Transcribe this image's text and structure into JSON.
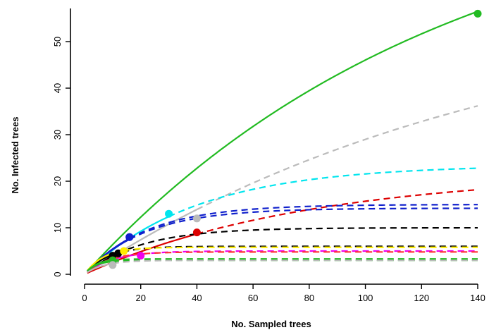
{
  "chart_data": {
    "type": "line",
    "title": "",
    "xlabel": "No. Sampled trees",
    "ylabel": "No. Infected trees",
    "xlim": [
      0,
      140
    ],
    "ylim": [
      0,
      55
    ],
    "xticks": [
      0,
      20,
      40,
      60,
      80,
      100,
      120,
      140
    ],
    "yticks": [
      0,
      10,
      20,
      30,
      40,
      50
    ],
    "grid": false,
    "legend": "none",
    "series": [
      {
        "color": "#22bb22",
        "asymptote": 85,
        "k": 0.0078,
        "n_observed": 140,
        "y_observed": 56,
        "extrapolate_to": 140
      },
      {
        "color": "#bbbbbb",
        "asymptote": 60,
        "k": 0.0066,
        "n_observed": 40,
        "y_observed": 12,
        "extrapolate_to": 140
      },
      {
        "color": "#00e5ee",
        "asymptote": 23.5,
        "k": 0.025,
        "n_observed": 30,
        "y_observed": 13,
        "extrapolate_to": 140
      },
      {
        "color": "#dd0000",
        "asymptote": 22,
        "k": 0.0125,
        "n_observed": 40,
        "y_observed": 9,
        "extrapolate_to": 140
      },
      {
        "color": "#1020cc",
        "asymptote": 15,
        "k": 0.045,
        "n_observed": 16,
        "y_observed": 8,
        "extrapolate_to": 140
      },
      {
        "color": "#1020cc",
        "asymptote": 14.2,
        "k": 0.047,
        "n_observed": 16,
        "y_observed": 8,
        "extrapolate_to": 140
      },
      {
        "color": "#000000",
        "asymptote": 10,
        "k": 0.05,
        "n_observed": 12,
        "y_observed": 4.5,
        "extrapolate_to": 140
      },
      {
        "color": "#000000",
        "asymptote": 6,
        "k": 0.12,
        "n_observed": 10,
        "y_observed": 4,
        "extrapolate_to": 140
      },
      {
        "color": "#ffee00",
        "asymptote": 5.8,
        "k": 0.15,
        "n_observed": 14,
        "y_observed": 5,
        "extrapolate_to": 140
      },
      {
        "color": "#ee00ee",
        "asymptote": 5,
        "k": 0.1,
        "n_observed": 20,
        "y_observed": 4,
        "extrapolate_to": 140
      },
      {
        "color": "#ff3333",
        "asymptote": 4.8,
        "k": 0.12,
        "n_observed": 10,
        "y_observed": 3,
        "extrapolate_to": 140
      },
      {
        "color": "#22bb22",
        "asymptote": 3.3,
        "k": 0.25,
        "n_observed": 10,
        "y_observed": 3,
        "extrapolate_to": 140
      },
      {
        "color": "#22bb22",
        "asymptote": 3.0,
        "k": 0.25,
        "n_observed": 10,
        "y_observed": 2.8,
        "extrapolate_to": 140
      },
      {
        "color": "#bbbbbb",
        "asymptote": 3.0,
        "k": 0.15,
        "n_observed": 10,
        "y_observed": 2,
        "extrapolate_to": 140
      }
    ]
  }
}
